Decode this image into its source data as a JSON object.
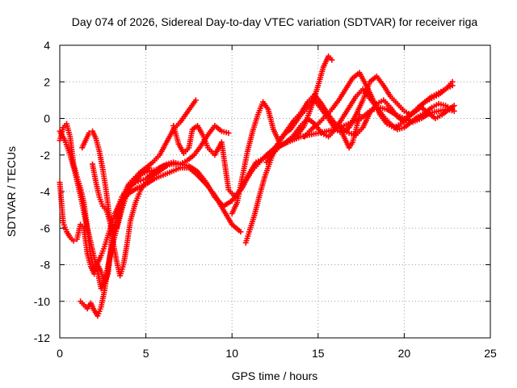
{
  "chart_data": {
    "type": "scatter",
    "title": "Day 074 of 2026, Sidereal Day-to-day VTEC variation (SDTVAR) for receiver riga",
    "xlabel": "GPS time / hours",
    "ylabel": "SDTVAR / TECUs",
    "xlim": [
      0,
      25
    ],
    "ylim": [
      -12,
      4
    ],
    "xticks": [
      "0",
      "5",
      "10",
      "15",
      "20",
      "25"
    ],
    "yticks": [
      "-12",
      "-10",
      "-8",
      "-6",
      "-4",
      "-2",
      "0",
      "2",
      "4"
    ],
    "grid": true,
    "marker": "+",
    "color": "#ff0000",
    "series": [
      {
        "x": [
          0.0,
          0.2,
          0.4,
          0.6,
          0.8,
          1.0,
          1.2,
          1.4,
          1.6,
          1.8,
          2.0,
          2.2,
          2.4,
          2.6,
          2.8,
          3.0,
          3.2,
          3.4,
          3.6,
          3.8,
          4.0,
          4.4,
          4.8,
          5.2,
          5.6,
          6.0,
          6.5,
          7.0,
          7.5,
          8.0,
          8.5,
          9.0,
          9.5,
          10.0,
          10.4,
          10.8,
          11.2,
          11.6,
          12.0,
          12.5,
          13.0,
          13.5,
          14.0,
          14.5,
          15.0,
          15.5,
          16.0,
          16.5,
          17.0,
          17.5,
          18.0,
          18.5,
          19.0,
          19.5,
          20.0,
          20.5,
          21.0,
          21.5,
          22.0,
          22.5,
          22.9
        ],
        "y": [
          -1.2,
          -0.5,
          -0.3,
          -1.0,
          -2.5,
          -3.2,
          -3.8,
          -4.6,
          -6.0,
          -7.5,
          -8.3,
          -8.0,
          -8.4,
          -9.0,
          -8.5,
          -6.8,
          -5.8,
          -4.8,
          -4.3,
          -4.0,
          -3.6,
          -3.2,
          -3.0,
          -2.9,
          -2.8,
          -2.6,
          -2.5,
          -2.5,
          -2.6,
          -2.9,
          -3.5,
          -4.3,
          -4.8,
          -4.5,
          -4.0,
          -3.4,
          -2.8,
          -2.4,
          -2.0,
          -1.6,
          -1.4,
          -1.2,
          -1.0,
          -0.9,
          -0.8,
          -0.7,
          -0.6,
          -0.4,
          -0.2,
          0.0,
          0.4,
          0.6,
          0.5,
          0.2,
          0.0,
          -0.2,
          0.0,
          0.3,
          0.4,
          0.5,
          0.4
        ]
      },
      {
        "x": [
          0.0,
          0.2,
          0.4,
          0.6,
          0.8,
          1.0,
          1.2,
          1.4,
          1.6,
          1.8,
          2.0,
          2.2,
          2.4,
          2.6,
          2.8,
          3.0,
          3.2,
          3.4,
          3.6,
          3.8,
          4.0,
          4.5,
          5.0,
          5.5,
          6.0,
          6.5,
          7.0,
          7.5,
          8.0,
          8.5,
          9.0,
          9.5,
          10.0,
          10.5
        ],
        "y": [
          -3.5,
          -5.7,
          -6.2,
          -6.5,
          -6.7,
          -6.6,
          -5.8,
          -6.0,
          -7.4,
          -8.1,
          -8.5,
          -7.9,
          -7.5,
          -7.0,
          -6.4,
          -5.8,
          -5.2,
          -4.8,
          -4.5,
          -4.3,
          -4.1,
          -3.8,
          -3.6,
          -3.3,
          -3.1,
          -2.9,
          -2.7,
          -2.7,
          -3.1,
          -3.6,
          -4.2,
          -5.0,
          -5.8,
          -6.2
        ]
      },
      {
        "x": [
          0.0,
          0.3,
          0.6,
          0.9,
          1.2,
          1.5,
          1.8,
          2.0,
          2.2,
          2.4,
          2.6,
          2.8,
          3.0,
          3.2,
          3.4,
          3.6,
          3.8,
          4.0,
          4.3,
          4.6,
          5.0,
          5.4,
          5.8,
          6.2,
          6.6,
          7.0,
          7.3,
          7.6,
          7.9
        ],
        "y": [
          -0.7,
          -1.2,
          -2.0,
          -3.0,
          -4.2,
          -5.6,
          -6.8,
          -7.6,
          -8.4,
          -9.3,
          -8.9,
          -8.1,
          -7.2,
          -6.4,
          -5.7,
          -5.0,
          -4.4,
          -3.9,
          -3.4,
          -3.0,
          -2.7,
          -2.4,
          -2.0,
          -1.3,
          -0.6,
          -0.2,
          0.2,
          0.6,
          1.0
        ]
      },
      {
        "x": [
          1.2,
          1.4,
          1.6,
          1.8,
          2.0,
          2.2,
          2.4,
          2.6,
          2.8,
          3.0,
          3.2,
          3.4,
          3.6,
          3.8,
          4.0,
          4.4,
          4.8,
          5.2
        ],
        "y": [
          -10.0,
          -10.2,
          -10.4,
          -10.1,
          -10.5,
          -10.8,
          -10.3,
          -9.4,
          -8.2,
          -6.9,
          -5.8,
          -5.0,
          -4.6,
          -4.2,
          -3.8,
          -3.4,
          -3.0,
          -2.7
        ]
      },
      {
        "x": [
          1.3,
          1.5,
          1.7,
          1.9,
          2.1,
          2.3,
          2.5,
          2.7,
          2.9,
          3.1,
          3.3,
          3.5,
          3.7,
          3.9,
          4.1,
          4.4,
          4.7,
          5.0,
          5.3,
          5.6,
          5.9,
          6.2
        ],
        "y": [
          -1.6,
          -1.2,
          -0.8,
          -0.7,
          -1.1,
          -1.8,
          -2.8,
          -4.0,
          -5.5,
          -6.8,
          -7.8,
          -8.6,
          -8.0,
          -6.9,
          -5.6,
          -4.6,
          -3.9,
          -3.5,
          -3.2,
          -3.0,
          -2.8,
          -2.6
        ]
      },
      {
        "x": [
          1.9,
          2.1,
          2.3,
          2.5,
          2.7,
          2.9,
          3.1,
          3.3,
          3.5,
          3.7,
          3.9,
          4.1,
          4.4,
          4.7,
          5.0,
          5.4,
          5.8,
          6.2,
          6.6,
          7.0,
          7.4,
          7.8,
          8.2,
          8.6,
          9.0,
          9.4,
          9.8
        ],
        "y": [
          -2.5,
          -3.5,
          -4.3,
          -4.8,
          -5.0,
          -5.6,
          -6.1,
          -6.0,
          -5.2,
          -4.5,
          -4.0,
          -3.7,
          -3.5,
          -3.4,
          -3.3,
          -3.0,
          -2.7,
          -2.5,
          -2.4,
          -2.5,
          -2.3,
          -2.0,
          -1.5,
          -0.9,
          -0.4,
          -0.7,
          -0.8
        ]
      },
      {
        "x": [
          6.6,
          6.9,
          7.2,
          7.5,
          7.7,
          8.0,
          8.3,
          8.6,
          9.0,
          9.4,
          9.8,
          10.2,
          10.6,
          11.0,
          11.4,
          11.8,
          12.2,
          12.6,
          13.0,
          13.4,
          13.8,
          14.2,
          14.6,
          15.0,
          15.3,
          15.6,
          15.8
        ],
        "y": [
          -0.4,
          -1.4,
          -1.9,
          -1.6,
          -0.6,
          -0.4,
          -0.9,
          -1.6,
          -2.0,
          -1.3,
          -3.9,
          -4.3,
          -3.8,
          -3.0,
          -2.4,
          -2.2,
          -1.9,
          -1.6,
          -1.4,
          -1.1,
          -0.9,
          -0.4,
          0.6,
          1.8,
          2.8,
          3.4,
          3.2
        ]
      },
      {
        "x": [
          10.0,
          10.3,
          10.6,
          10.9,
          11.2,
          11.5,
          11.8,
          12.1,
          12.4,
          12.7,
          13.0,
          13.3,
          13.6,
          14.0,
          14.4,
          14.8,
          15.2,
          15.6,
          16.0,
          16.4,
          16.8,
          17.2,
          17.6,
          18.0,
          18.4,
          18.8,
          19.2,
          19.6,
          20.0,
          20.4,
          20.8,
          21.2,
          21.6,
          22.0,
          22.4,
          22.8
        ],
        "y": [
          -5.2,
          -4.6,
          -3.2,
          -1.8,
          -0.7,
          0.2,
          0.9,
          0.5,
          -0.6,
          -1.2,
          -0.9,
          -0.5,
          -0.1,
          0.3,
          0.9,
          1.3,
          0.8,
          0.2,
          -0.3,
          -0.6,
          -0.8,
          -0.9,
          -0.5,
          0.3,
          0.8,
          1.0,
          0.6,
          0.1,
          -0.2,
          0.2,
          0.6,
          0.9,
          1.1,
          1.3,
          1.6,
          2.0
        ]
      },
      {
        "x": [
          10.8,
          11.0,
          11.3,
          11.6,
          11.9,
          12.2,
          12.5,
          12.8,
          13.1,
          13.4,
          13.7,
          14.0,
          14.4,
          14.8,
          15.2,
          15.6,
          16.0,
          16.4,
          16.8,
          17.2,
          17.6,
          18.0,
          18.4,
          18.8,
          19.2,
          19.6,
          20.0,
          20.4,
          20.8,
          21.2,
          21.6,
          22.0,
          22.4,
          22.8
        ],
        "y": [
          -6.8,
          -6.2,
          -5.3,
          -4.2,
          -3.2,
          -2.4,
          -1.6,
          -1.2,
          -0.8,
          -0.6,
          -0.2,
          0.2,
          0.6,
          1.0,
          0.5,
          0.0,
          -0.6,
          -0.8,
          -0.5,
          0.2,
          1.0,
          2.0,
          2.3,
          1.8,
          1.2,
          0.8,
          0.4,
          0.2,
          0.5,
          0.9,
          1.2,
          1.4,
          1.6,
          1.8
        ]
      },
      {
        "x": [
          12.0,
          12.4,
          12.8,
          13.2,
          13.6,
          14.0,
          14.4,
          14.8,
          15.2,
          15.6,
          16.0,
          16.4,
          16.8,
          17.2,
          17.6,
          18.0,
          18.4,
          18.8,
          19.2,
          19.6,
          20.0,
          20.4,
          20.8,
          21.2,
          21.6,
          22.0,
          22.4,
          22.8
        ],
        "y": [
          -2.4,
          -1.9,
          -1.5,
          -1.3,
          -0.9,
          -0.4,
          0.0,
          -0.3,
          -0.8,
          -1.0,
          -0.6,
          0.0,
          0.6,
          1.2,
          1.6,
          1.1,
          0.6,
          0.1,
          -0.3,
          -0.6,
          -0.5,
          -0.2,
          0.1,
          0.3,
          0.6,
          0.8,
          0.7,
          0.5
        ]
      },
      {
        "x": [
          14.2,
          14.6,
          15.0,
          15.4,
          15.8,
          16.2,
          16.6,
          17.0,
          17.4,
          17.8,
          18.2,
          18.6,
          19.0,
          19.4,
          19.8,
          20.2,
          20.6,
          21.0,
          21.4,
          21.8,
          22.2,
          22.6,
          22.9
        ],
        "y": [
          -1.0,
          -0.6,
          -0.3,
          0.1,
          0.5,
          1.0,
          1.6,
          2.2,
          2.5,
          1.8,
          1.0,
          0.2,
          -0.3,
          -0.5,
          -0.3,
          0.1,
          0.4,
          0.6,
          0.3,
          0.0,
          0.2,
          0.5,
          0.7
        ]
      },
      {
        "x": [
          16.2,
          16.4,
          16.6,
          16.8,
          17.0,
          17.2,
          17.4
        ],
        "y": [
          -0.3,
          -0.8,
          -1.2,
          -1.6,
          -1.3,
          -0.6,
          0.2
        ]
      }
    ]
  }
}
